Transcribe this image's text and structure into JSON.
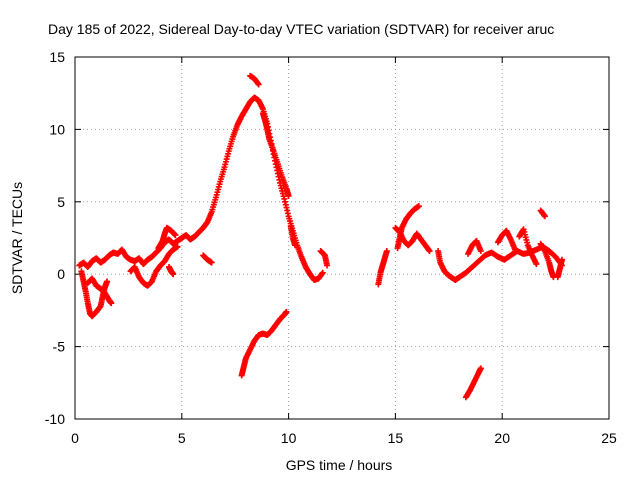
{
  "chart_data": {
    "type": "scatter",
    "title": "Day 185 of 2022, Sidereal Day-to-day VTEC variation (SDTVAR) for receiver aruc",
    "xlabel": "GPS time / hours",
    "ylabel": "SDTVAR / TECUs",
    "xlim": [
      0,
      25
    ],
    "ylim": [
      -10,
      15
    ],
    "xticks": [
      0,
      5,
      10,
      15,
      20,
      25
    ],
    "yticks": [
      -10,
      -5,
      0,
      5,
      10,
      15
    ],
    "xtick_labels": [
      "0",
      "5",
      "10",
      "15",
      "20",
      "25"
    ],
    "ytick_labels": [
      "-10",
      "-5",
      "0",
      "5",
      "10",
      "15"
    ],
    "grid": true,
    "marker": "+",
    "color": "#ff0000",
    "series": [
      {
        "name": "SDTVAR",
        "segments": [
          [
            [
              0.2,
              0.6
            ],
            [
              0.4,
              0.8
            ],
            [
              0.6,
              0.5
            ],
            [
              0.8,
              0.9
            ],
            [
              1.0,
              1.1
            ],
            [
              1.2,
              0.8
            ],
            [
              1.4,
              1.0
            ],
            [
              1.6,
              1.3
            ],
            [
              1.8,
              1.5
            ],
            [
              2.0,
              1.4
            ],
            [
              2.2,
              1.7
            ],
            [
              2.4,
              1.2
            ],
            [
              2.6,
              1.0
            ],
            [
              2.8,
              0.9
            ],
            [
              3.0,
              1.1
            ],
            [
              3.2,
              0.7
            ],
            [
              3.4,
              1.0
            ],
            [
              3.6,
              1.2
            ],
            [
              3.8,
              1.5
            ],
            [
              4.0,
              1.8
            ],
            [
              4.2,
              2.2
            ],
            [
              4.4,
              2.4
            ],
            [
              4.6,
              2.1
            ],
            [
              4.8,
              2.3
            ],
            [
              5.0,
              2.5
            ],
            [
              5.2,
              2.7
            ],
            [
              5.4,
              2.4
            ],
            [
              5.6,
              2.6
            ],
            [
              5.8,
              2.9
            ],
            [
              6.0,
              3.2
            ],
            [
              6.2,
              3.6
            ],
            [
              6.4,
              4.3
            ],
            [
              6.6,
              5.3
            ],
            [
              6.8,
              6.4
            ],
            [
              7.0,
              7.4
            ],
            [
              7.2,
              8.5
            ],
            [
              7.4,
              9.5
            ],
            [
              7.6,
              10.3
            ],
            [
              7.8,
              10.9
            ],
            [
              8.0,
              11.4
            ],
            [
              8.2,
              11.9
            ],
            [
              8.4,
              12.2
            ],
            [
              8.6,
              12.0
            ],
            [
              8.8,
              11.4
            ],
            [
              9.0,
              10.4
            ],
            [
              9.2,
              9.0
            ],
            [
              9.4,
              7.6
            ],
            [
              9.6,
              6.3
            ],
            [
              9.8,
              5.2
            ],
            [
              10.0,
              4.0
            ],
            [
              10.2,
              3.0
            ],
            [
              10.4,
              2.0
            ],
            [
              10.6,
              1.2
            ],
            [
              10.8,
              0.5
            ],
            [
              11.0,
              0.0
            ],
            [
              11.2,
              -0.4
            ],
            [
              11.4,
              -0.3
            ],
            [
              11.6,
              0.1
            ]
          ],
          [
            [
              0.3,
              0.2
            ],
            [
              0.4,
              -0.5
            ],
            [
              0.5,
              -1.2
            ],
            [
              0.6,
              -2.0
            ],
            [
              0.7,
              -2.7
            ],
            [
              0.8,
              -2.9
            ],
            [
              1.0,
              -2.6
            ],
            [
              1.2,
              -2.2
            ],
            [
              1.3,
              -1.5
            ],
            [
              1.4,
              -0.9
            ],
            [
              1.5,
              -0.5
            ]
          ],
          [
            [
              0.6,
              -0.6
            ],
            [
              0.8,
              -0.3
            ],
            [
              1.0,
              -0.8
            ],
            [
              1.2,
              -1.0
            ],
            [
              1.4,
              -1.3
            ],
            [
              1.6,
              -1.8
            ],
            [
              1.7,
              -2.0
            ]
          ],
          [
            [
              2.6,
              0.2
            ],
            [
              2.8,
              0.5
            ],
            [
              3.0,
              -0.2
            ],
            [
              3.2,
              -0.6
            ],
            [
              3.4,
              -0.8
            ],
            [
              3.6,
              -0.5
            ],
            [
              3.8,
              0.2
            ],
            [
              4.0,
              0.6
            ],
            [
              4.2,
              0.9
            ],
            [
              4.4,
              1.4
            ],
            [
              4.6,
              1.7
            ],
            [
              4.8,
              1.9
            ]
          ],
          [
            [
              3.9,
              1.8
            ],
            [
              4.1,
              2.3
            ],
            [
              4.2,
              2.8
            ],
            [
              4.3,
              3.2
            ],
            [
              4.5,
              3.0
            ],
            [
              4.7,
              2.7
            ]
          ],
          [
            [
              4.4,
              0.5
            ],
            [
              4.5,
              0.2
            ],
            [
              4.6,
              0.0
            ]
          ],
          [
            [
              6.0,
              1.3
            ],
            [
              6.2,
              1.0
            ],
            [
              6.4,
              0.8
            ]
          ],
          [
            [
              8.2,
              13.7
            ],
            [
              8.4,
              13.5
            ],
            [
              8.6,
              13.1
            ]
          ],
          [
            [
              7.8,
              -7.0
            ],
            [
              7.9,
              -6.4
            ],
            [
              8.0,
              -5.8
            ],
            [
              8.2,
              -5.2
            ],
            [
              8.4,
              -4.6
            ],
            [
              8.6,
              -4.2
            ],
            [
              8.8,
              -4.1
            ],
            [
              9.0,
              -4.2
            ],
            [
              9.2,
              -3.9
            ],
            [
              9.4,
              -3.5
            ],
            [
              9.6,
              -3.1
            ],
            [
              9.8,
              -2.8
            ],
            [
              9.9,
              -2.6
            ]
          ],
          [
            [
              8.8,
              11.1
            ],
            [
              8.9,
              10.6
            ],
            [
              9.0,
              10.0
            ],
            [
              9.1,
              9.3
            ],
            [
              9.3,
              8.5
            ],
            [
              9.5,
              7.6
            ],
            [
              9.7,
              6.7
            ],
            [
              9.9,
              5.9
            ],
            [
              10.0,
              5.4
            ]
          ],
          [
            [
              10.1,
              3.3
            ],
            [
              10.2,
              2.5
            ],
            [
              10.3,
              2.0
            ]
          ],
          [
            [
              11.5,
              1.6
            ],
            [
              11.7,
              1.3
            ],
            [
              11.8,
              0.6
            ]
          ],
          [
            [
              14.2,
              -0.7
            ],
            [
              14.3,
              0.1
            ],
            [
              14.4,
              0.6
            ],
            [
              14.5,
              1.1
            ],
            [
              14.6,
              1.6
            ]
          ],
          [
            [
              15.1,
              1.8
            ],
            [
              15.2,
              2.5
            ],
            [
              15.3,
              3.2
            ],
            [
              15.5,
              3.8
            ],
            [
              15.7,
              4.2
            ],
            [
              15.9,
              4.5
            ],
            [
              16.1,
              4.7
            ]
          ],
          [
            [
              15.0,
              3.2
            ],
            [
              15.2,
              2.9
            ],
            [
              15.4,
              2.3
            ],
            [
              15.6,
              2.0
            ],
            [
              15.8,
              2.3
            ],
            [
              16.0,
              2.8
            ],
            [
              16.2,
              2.4
            ],
            [
              16.4,
              2.0
            ],
            [
              16.6,
              1.6
            ]
          ],
          [
            [
              17.0,
              1.6
            ],
            [
              17.1,
              0.8
            ],
            [
              17.3,
              0.2
            ],
            [
              17.5,
              -0.1
            ],
            [
              17.8,
              -0.4
            ],
            [
              18.0,
              -0.2
            ],
            [
              18.3,
              0.1
            ],
            [
              18.6,
              0.5
            ],
            [
              18.9,
              0.9
            ],
            [
              19.2,
              1.3
            ],
            [
              19.5,
              1.5
            ],
            [
              19.8,
              1.2
            ],
            [
              20.1,
              1.0
            ],
            [
              20.4,
              1.3
            ],
            [
              20.7,
              1.6
            ],
            [
              21.0,
              1.4
            ],
            [
              21.3,
              1.5
            ],
            [
              21.6,
              1.7
            ],
            [
              21.9,
              1.9
            ],
            [
              22.2,
              1.6
            ],
            [
              22.5,
              1.2
            ],
            [
              22.8,
              0.6
            ]
          ],
          [
            [
              18.4,
              1.4
            ],
            [
              18.6,
              2.0
            ],
            [
              18.8,
              2.3
            ],
            [
              19.0,
              1.6
            ]
          ],
          [
            [
              19.8,
              2.2
            ],
            [
              20.0,
              2.7
            ],
            [
              20.2,
              3.0
            ],
            [
              20.4,
              2.4
            ],
            [
              20.6,
              1.7
            ]
          ],
          [
            [
              20.8,
              2.6
            ],
            [
              21.0,
              3.1
            ],
            [
              21.2,
              2.0
            ],
            [
              21.4,
              1.3
            ],
            [
              21.6,
              0.7
            ]
          ],
          [
            [
              21.8,
              2.1
            ],
            [
              22.0,
              1.6
            ],
            [
              22.2,
              0.8
            ],
            [
              22.3,
              0.2
            ],
            [
              22.4,
              -0.2
            ]
          ],
          [
            [
              21.8,
              4.4
            ],
            [
              22.0,
              4.0
            ]
          ],
          [
            [
              22.6,
              -0.2
            ],
            [
              22.7,
              0.4
            ],
            [
              22.8,
              1.0
            ]
          ],
          [
            [
              18.3,
              -8.5
            ],
            [
              18.5,
              -8.0
            ],
            [
              18.7,
              -7.4
            ],
            [
              18.9,
              -6.8
            ],
            [
              19.0,
              -6.5
            ]
          ]
        ]
      }
    ]
  }
}
